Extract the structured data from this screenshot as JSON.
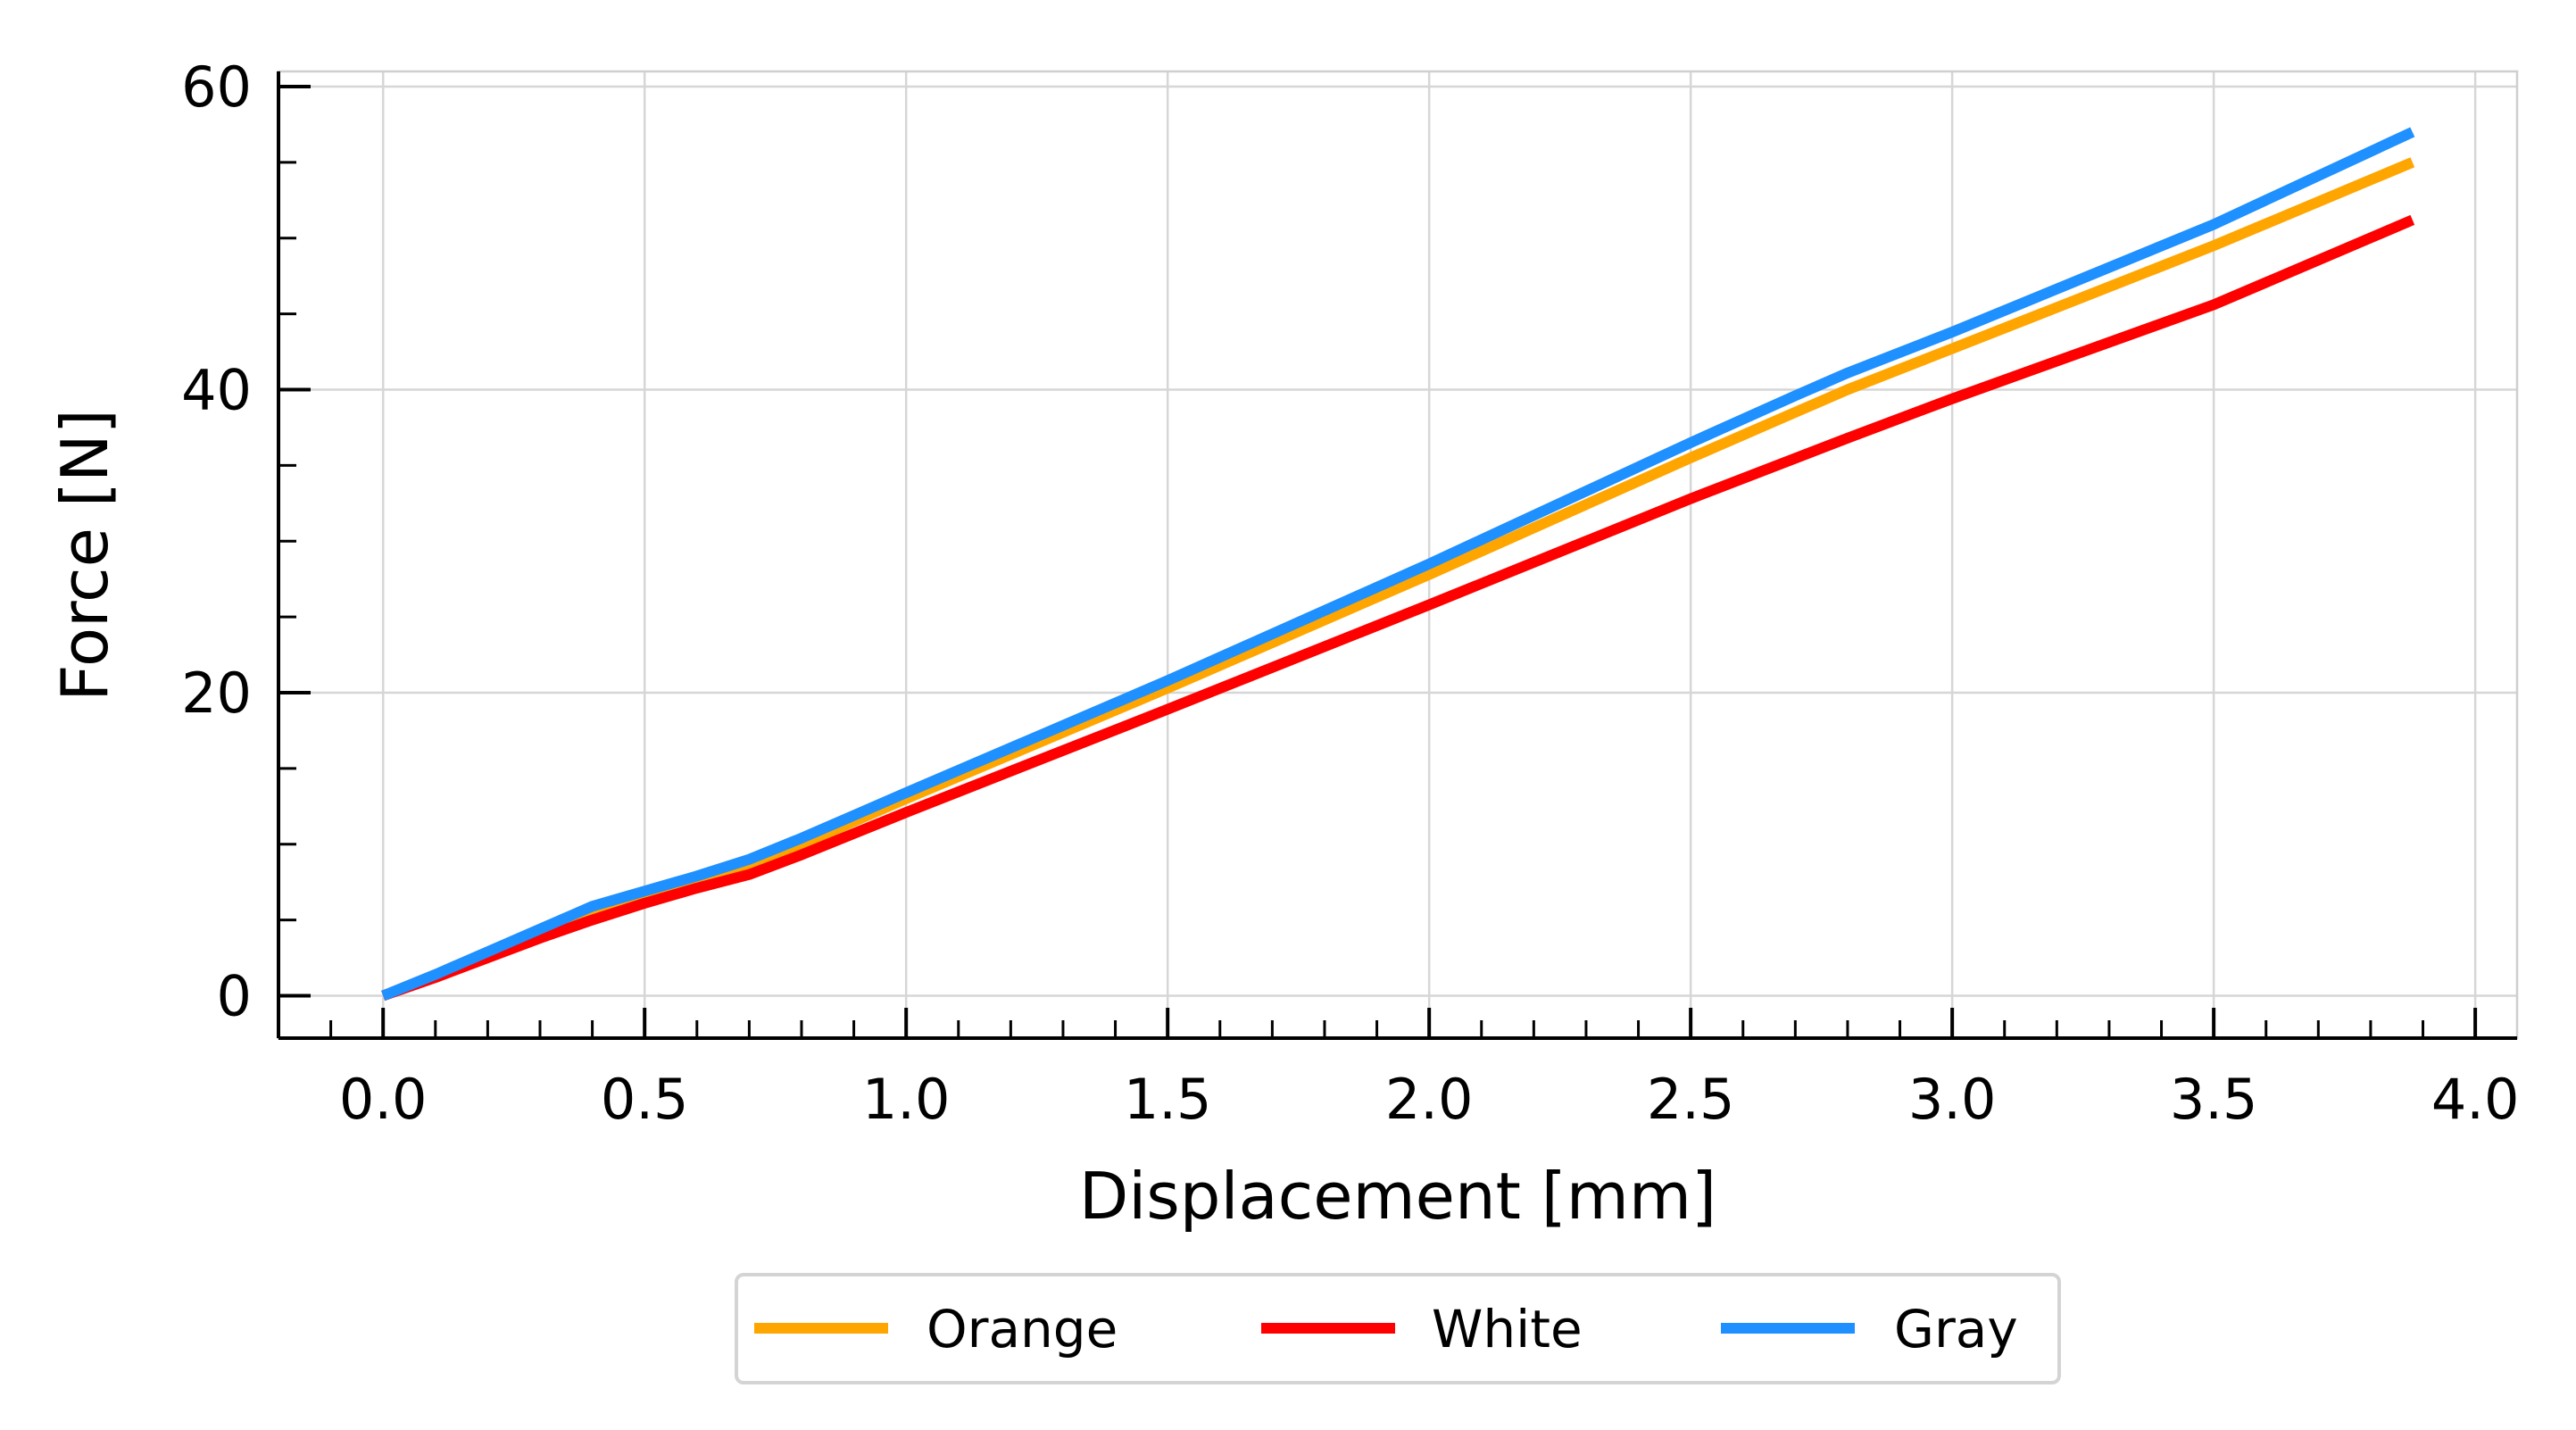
{
  "chart_data": {
    "type": "line",
    "title": "",
    "xlabel": "Displacement [mm]",
    "ylabel": "Force [N]",
    "xlim": [
      -0.2,
      4.08
    ],
    "ylim": [
      -2.8,
      61
    ],
    "xticks": [
      0.0,
      0.5,
      1.0,
      1.5,
      2.0,
      2.5,
      3.0,
      3.5,
      4.0
    ],
    "xtick_labels": [
      "0.0",
      "0.5",
      "1.0",
      "1.5",
      "2.0",
      "2.5",
      "3.0",
      "3.5",
      "4.0"
    ],
    "yticks": [
      0,
      20,
      40,
      60
    ],
    "ytick_labels": [
      "0",
      "20",
      "40",
      "60"
    ],
    "grid": true,
    "legend_position": "bottom-center-outside",
    "series": [
      {
        "name": "Orange",
        "color": "#FFA500",
        "x": [
          0.0,
          0.1,
          0.2,
          0.3,
          0.4,
          0.5,
          0.6,
          0.7,
          0.8,
          0.9,
          1.0,
          1.5,
          2.0,
          2.5,
          2.7,
          2.8,
          3.0,
          3.5,
          3.88
        ],
        "y": [
          0.0,
          1.3,
          2.8,
          4.2,
          5.6,
          6.6,
          7.6,
          8.6,
          10.0,
          11.5,
          13.0,
          20.3,
          27.8,
          35.5,
          38.5,
          40.0,
          42.7,
          49.5,
          55.0
        ]
      },
      {
        "name": "White",
        "color": "#FF0000",
        "x": [
          0.0,
          0.1,
          0.2,
          0.3,
          0.4,
          0.5,
          0.6,
          0.7,
          0.8,
          0.9,
          1.0,
          1.5,
          2.0,
          2.5,
          2.8,
          3.0,
          3.5,
          3.88
        ],
        "y": [
          0.0,
          1.2,
          2.5,
          3.8,
          5.0,
          6.1,
          7.1,
          8.0,
          9.3,
          10.7,
          12.1,
          18.9,
          25.8,
          32.8,
          36.8,
          39.4,
          45.6,
          51.2
        ]
      },
      {
        "name": "Gray",
        "color": "#1E90FF",
        "x": [
          0.0,
          0.1,
          0.2,
          0.3,
          0.4,
          0.5,
          0.6,
          0.7,
          0.8,
          0.9,
          1.0,
          1.5,
          2.0,
          2.5,
          2.7,
          2.8,
          3.0,
          3.5,
          3.88
        ],
        "y": [
          0.0,
          1.4,
          2.9,
          4.4,
          5.9,
          6.9,
          7.9,
          9.0,
          10.4,
          11.9,
          13.4,
          20.8,
          28.5,
          36.5,
          39.6,
          41.1,
          43.8,
          50.9,
          57.0
        ]
      }
    ]
  }
}
